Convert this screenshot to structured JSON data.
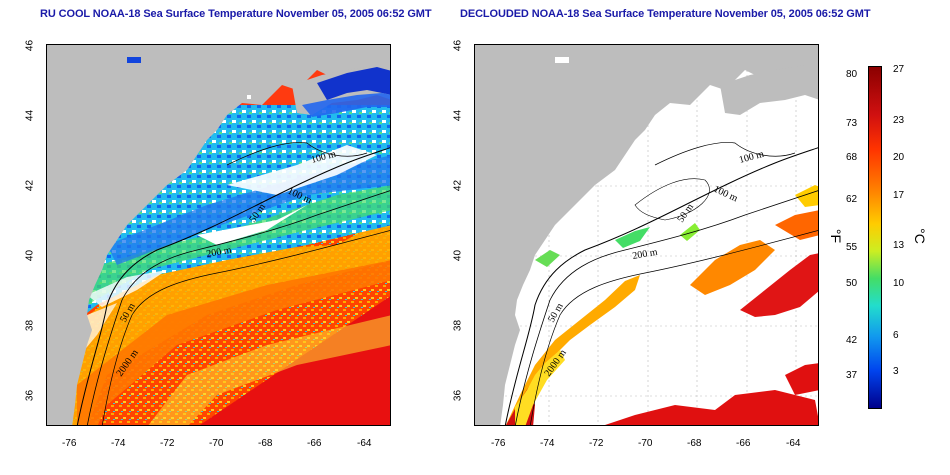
{
  "left_panel": {
    "title": "RU COOL NOAA-18 Sea Surface Temperature November 05, 2005 06:52 GMT",
    "contour_labels": [
      "100 m",
      "100 m",
      "50 m",
      "200 m",
      "50 m",
      "2000 m"
    ]
  },
  "right_panel": {
    "title": "DECLOUDED NOAA-18 Sea Surface Temperature November 05, 2005 06:52 GMT",
    "contour_labels": [
      "100 m",
      "100 m",
      "50 m",
      "200 m",
      "50 m",
      "2000 m"
    ]
  },
  "axes": {
    "lat_ticks": [
      "46",
      "44",
      "42",
      "40",
      "38",
      "36"
    ],
    "lon_ticks": [
      "-76",
      "-74",
      "-72",
      "-70",
      "-68",
      "-66",
      "-64"
    ]
  },
  "colorbar": {
    "fahrenheit_ticks": [
      "80",
      "73",
      "68",
      "62",
      "55",
      "50",
      "42",
      "37"
    ],
    "celsius_ticks": [
      "27",
      "23",
      "20",
      "17",
      "13",
      "10",
      "6",
      "3"
    ],
    "fahrenheit_unit": "°F",
    "celsius_unit": "°C"
  },
  "colors": {
    "land": "#bdbdbd",
    "cloud_mask": "#ffffff",
    "title": "#1a1aa8"
  }
}
